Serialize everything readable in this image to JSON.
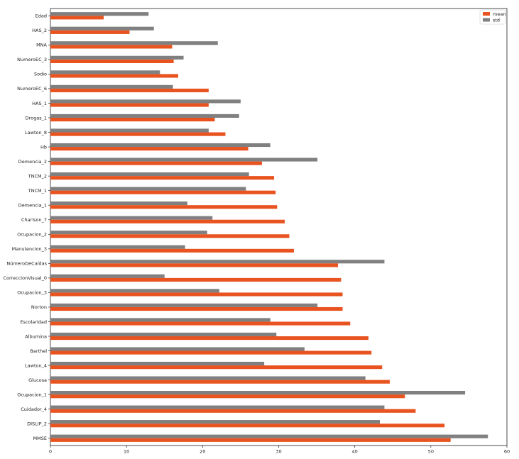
{
  "chart_data": {
    "type": "bar",
    "orientation": "horizontal",
    "categories": [
      "Edad",
      "HAS_2",
      "MNA",
      "NumeroEC_3",
      "Sodio",
      "NumeroEC_6",
      "HAS_1",
      "Drogas_1",
      "Lawton_8",
      "Hb",
      "Demencia_2",
      "TNCM_2",
      "TNCM_1",
      "Demencia_1",
      "Charlson_7",
      "Ocupacion_2",
      "Manutencion_3",
      "NúmeroDeCaídas",
      "CorreccionVisual_0",
      "Ocupacion_3",
      "Norton",
      "Escolaridad",
      "Albumina",
      "Barthel",
      "Lawton_4",
      "Glucosa",
      "Ocupacion_1",
      "Cuidador_4",
      "DISLIP_2",
      "MMSE"
    ],
    "series": [
      {
        "name": "mean",
        "color": "#e8531f",
        "values": [
          7.0,
          10.4,
          16.0,
          16.2,
          16.8,
          20.8,
          20.8,
          21.6,
          23.0,
          26.0,
          27.8,
          29.4,
          29.6,
          29.8,
          30.8,
          31.4,
          32.0,
          37.8,
          38.2,
          38.4,
          38.4,
          39.4,
          41.8,
          42.2,
          43.6,
          44.6,
          46.6,
          48.0,
          51.8,
          52.6
        ]
      },
      {
        "name": "std",
        "color": "#808080",
        "values": [
          12.9,
          13.6,
          22.0,
          17.5,
          14.4,
          16.1,
          25.0,
          24.8,
          20.8,
          28.9,
          35.1,
          26.1,
          25.7,
          18.0,
          21.3,
          20.6,
          17.7,
          43.9,
          15.0,
          22.2,
          35.1,
          28.9,
          29.7,
          33.4,
          28.1,
          41.4,
          54.5,
          43.9,
          43.3,
          57.5
        ]
      }
    ],
    "xticks": [
      "0",
      "10",
      "20",
      "30",
      "40",
      "50",
      "60"
    ],
    "xlim": [
      0,
      60
    ],
    "title": "",
    "xlabel": "",
    "ylabel": "",
    "grid": false,
    "legend_position": "top-right"
  }
}
